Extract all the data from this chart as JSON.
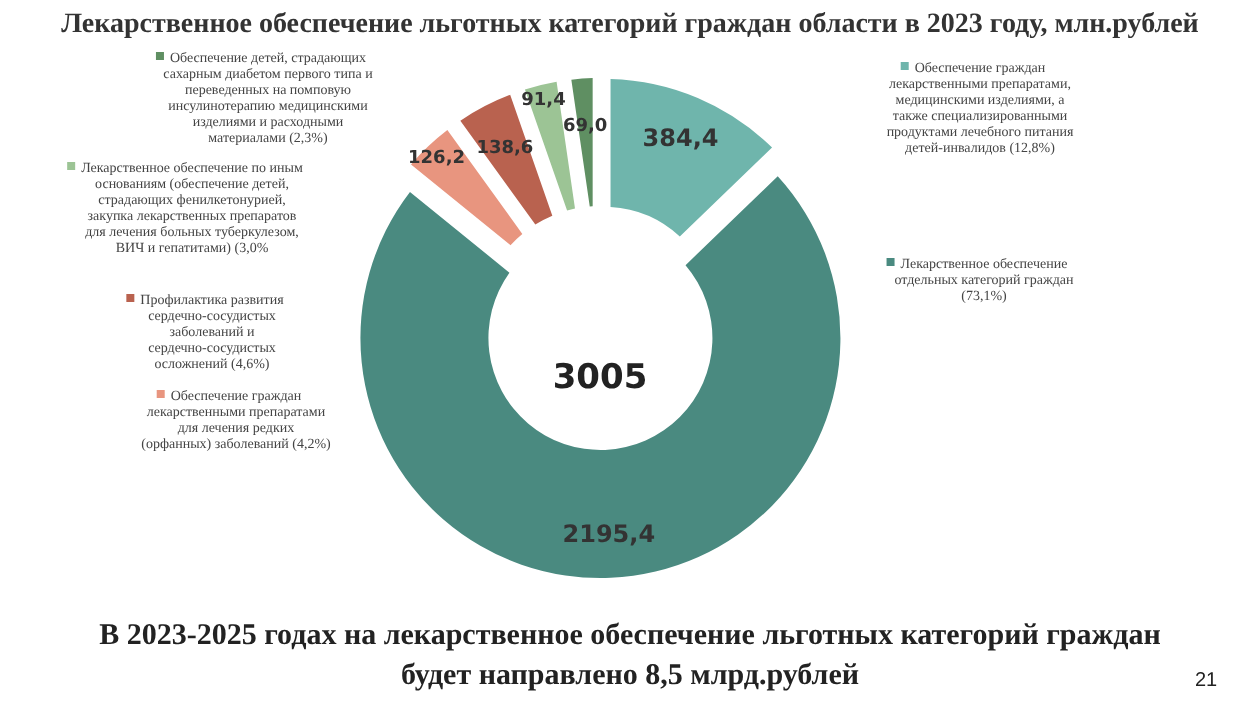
{
  "chart_data": {
    "type": "donut",
    "title": "Лекарственное обеспечение льготных категорий граждан  области  в 2023 году,  млн.рублей",
    "categories": [
      "Обеспечение граждан лекарственными препаратами, медицинскими изделиями, а также специализированными продуктами лечебного питания  детей-инвалидов (12,8%)",
      "Лекарственное обеспечение отдельных категорий граждан (73,1%)",
      "Обеспечение  граждан лекарственными препаратами для лечения редких (орфанных) заболеваний (4,2%)",
      "Профилактика развития сердечно-сосудистых заболеваний и сердечно-сосудистых осложнений (4,6%)",
      "Лекарственное обеспечение по иным основаниям (обеспечение детей, страдающих фенилкетонурией, закупка лекарственных препаратов для лечения больных туберкулезом, ВИЧ и гепатитами) (3,0%",
      "Обеспечение детей, страдающих сахарным диабетом первого типа и переведенных на помповую инсулинотерапию медицинскими изделиями и расходными материалами (2,3%)"
    ],
    "values": [
      384.4,
      2195.4,
      126.2,
      138.6,
      91.4,
      69.0
    ],
    "value_labels": [
      "384,4",
      "2195,4",
      "126,2",
      "138,6",
      "91,4",
      "69,0"
    ],
    "colors": [
      "#6fb5ac",
      "#4a8a80",
      "#e8957f",
      "#b9624f",
      "#9cc495",
      "#5f8f62"
    ],
    "legend": "left",
    "annotations": [
      "3005",
      "В 2023-2025 годах на лекарственное обеспечение льготных категорий граждан будет направлено 8,5 млрд.рублей",
      "21"
    ]
  }
}
